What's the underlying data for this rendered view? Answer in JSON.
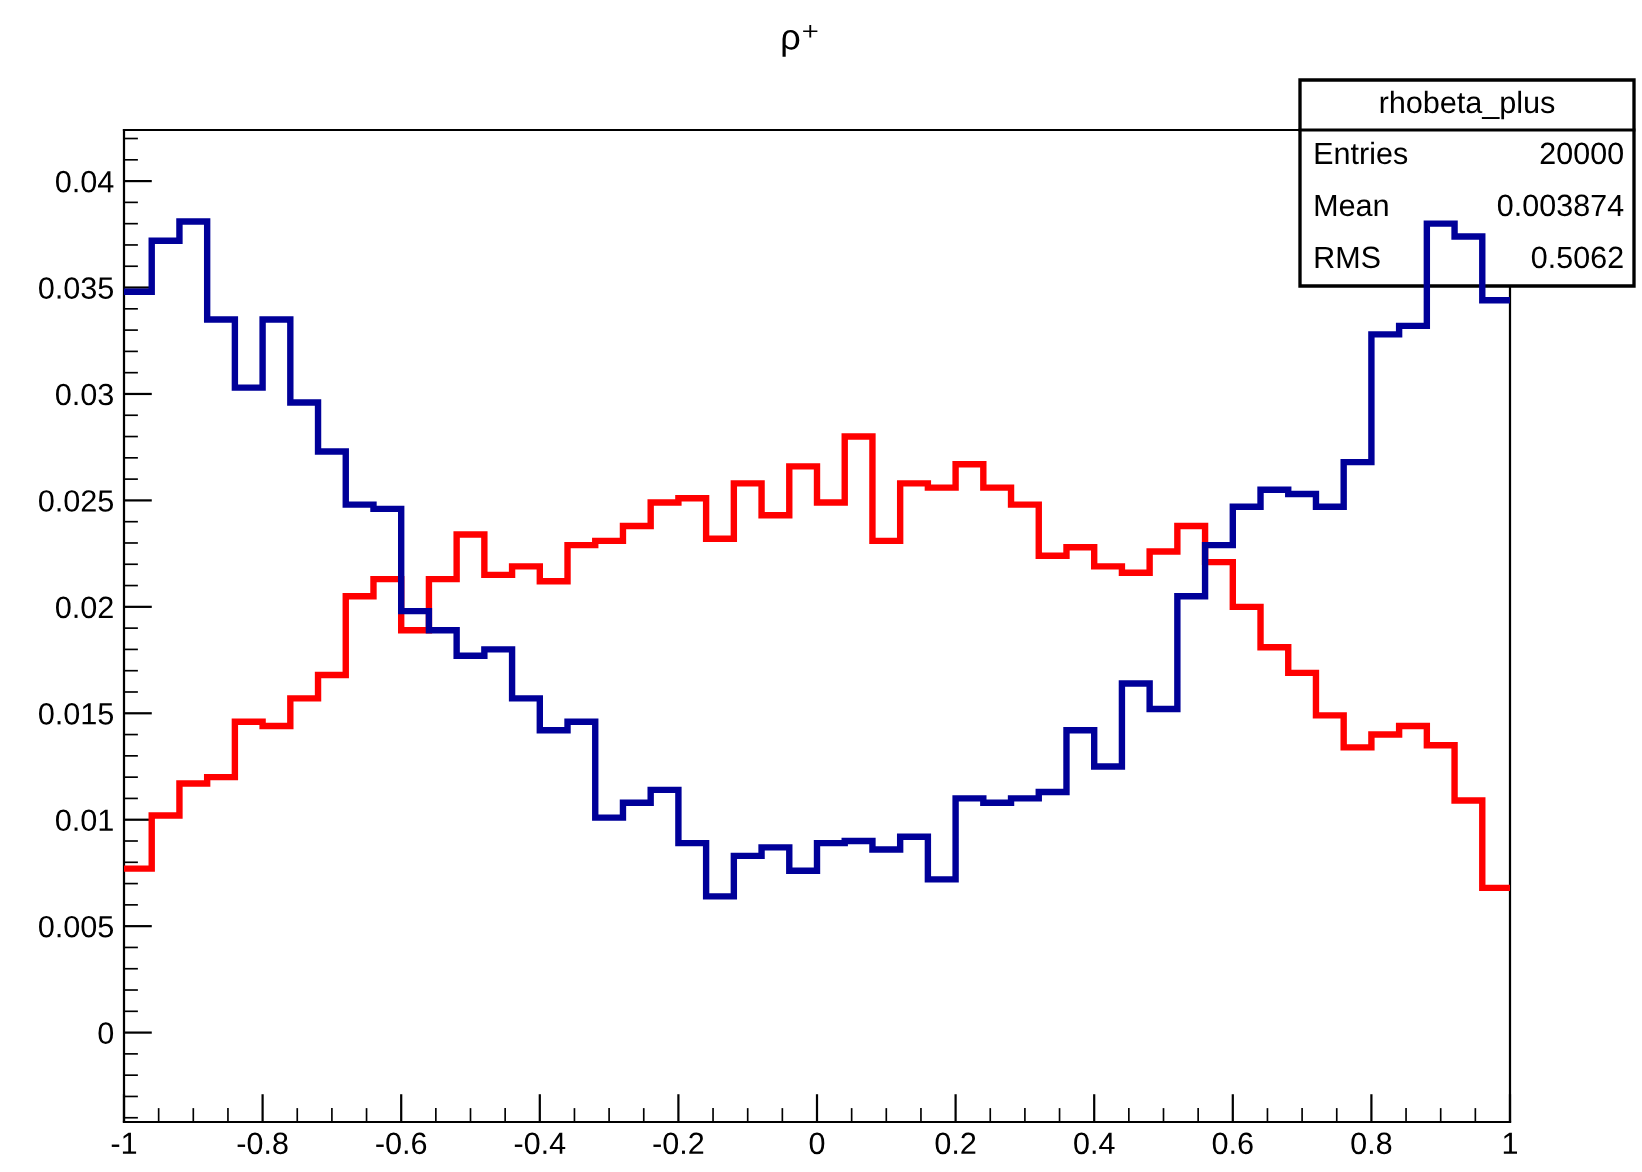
{
  "chart_data": {
    "type": "histogram",
    "title": "ρ⁺",
    "bins": [
      -1,
      -0.96,
      -0.92,
      -0.88,
      -0.84,
      -0.8,
      -0.76,
      -0.72,
      -0.68,
      -0.64,
      -0.6,
      -0.56,
      -0.52,
      -0.48,
      -0.44,
      -0.4,
      -0.36,
      -0.32,
      -0.28,
      -0.24,
      -0.2,
      -0.16,
      -0.12,
      -0.08,
      -0.04,
      0,
      0.04,
      0.08,
      0.12,
      0.16,
      0.2,
      0.24,
      0.28,
      0.32,
      0.36,
      0.4,
      0.44,
      0.48,
      0.52,
      0.56,
      0.6,
      0.64,
      0.68,
      0.72,
      0.76,
      0.8,
      0.84,
      0.88,
      0.92,
      0.96,
      1
    ],
    "series": [
      {
        "color": "#ff0000",
        "values": [
          0.0077,
          0.0102,
          0.0117,
          0.012,
          0.0146,
          0.0144,
          0.0157,
          0.0168,
          0.0205,
          0.0213,
          0.0189,
          0.0213,
          0.0234,
          0.0215,
          0.0219,
          0.0212,
          0.0229,
          0.0231,
          0.0238,
          0.0249,
          0.0251,
          0.0232,
          0.0258,
          0.0243,
          0.0266,
          0.0249,
          0.028,
          0.0231,
          0.0258,
          0.0256,
          0.0267,
          0.0256,
          0.0248,
          0.0224,
          0.0228,
          0.0219,
          0.0216,
          0.0226,
          0.0238,
          0.0221,
          0.02,
          0.0181,
          0.0169,
          0.0149,
          0.0134,
          0.014,
          0.0144,
          0.0135,
          0.0109,
          0.0068
        ]
      },
      {
        "color": "#000099",
        "values": [
          0.0348,
          0.0372,
          0.0381,
          0.0335,
          0.0303,
          0.0335,
          0.0296,
          0.0273,
          0.0248,
          0.0246,
          0.0198,
          0.0189,
          0.0177,
          0.018,
          0.0157,
          0.0142,
          0.0146,
          0.0101,
          0.0108,
          0.0114,
          0.0089,
          0.0064,
          0.0083,
          0.0087,
          0.0076,
          0.0089,
          0.009,
          0.0086,
          0.0092,
          0.0072,
          0.011,
          0.0108,
          0.011,
          0.0113,
          0.0142,
          0.0125,
          0.0164,
          0.0152,
          0.0205,
          0.0229,
          0.0247,
          0.0255,
          0.0253,
          0.0247,
          0.0268,
          0.0328,
          0.0332,
          0.038,
          0.0374,
          0.0344
        ]
      }
    ],
    "xlim": [
      -1,
      1
    ],
    "ylim": [
      -0.0042,
      0.0424
    ],
    "xticks": [
      -1,
      -0.8,
      -0.6,
      -0.4,
      -0.2,
      0,
      0.2,
      0.4,
      0.6,
      0.8,
      1
    ],
    "yticks": [
      0,
      0.005,
      0.01,
      0.015,
      0.02,
      0.025,
      0.03,
      0.035,
      0.04
    ],
    "grid": false,
    "annotations": [
      "rhobeta_plus",
      "Entries",
      "20000",
      "Mean",
      "0.003874",
      "RMS",
      "0.5062"
    ]
  }
}
